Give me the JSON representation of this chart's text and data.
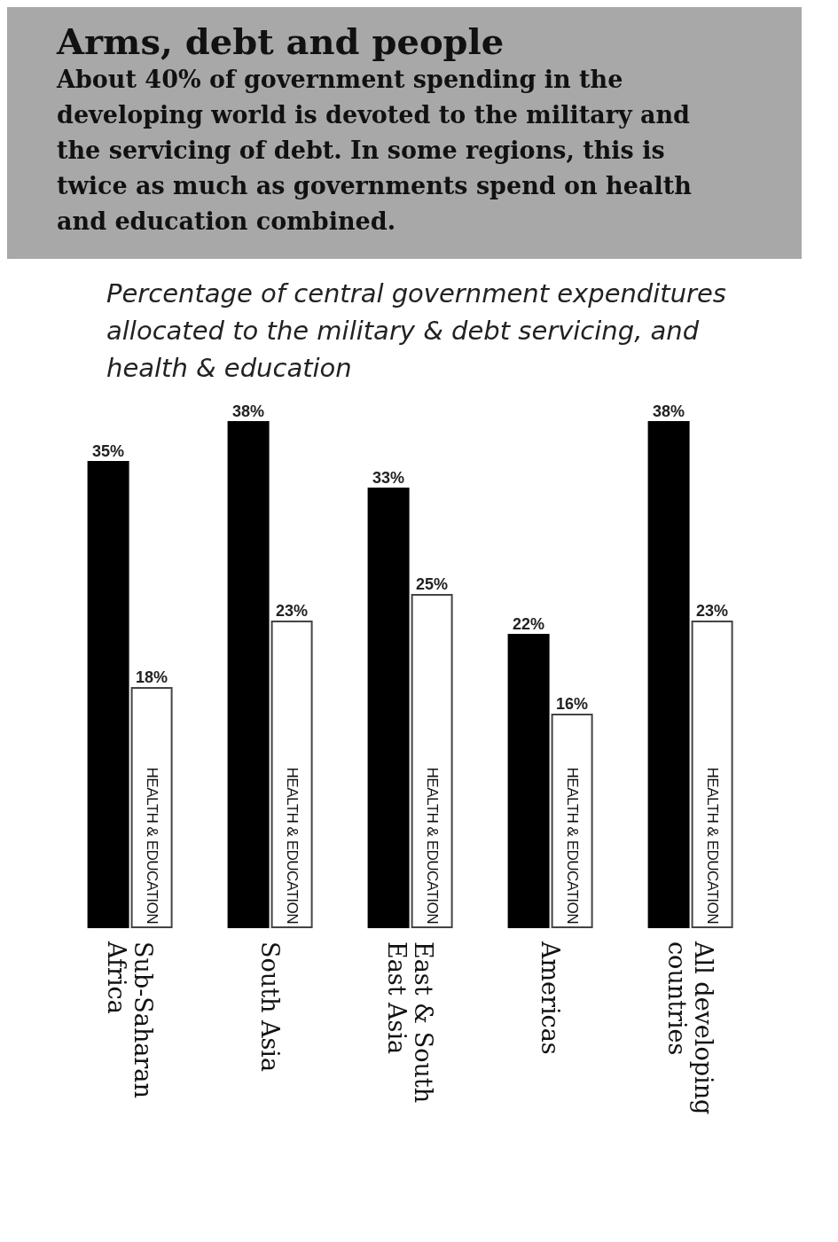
{
  "chart_data": {
    "type": "bar",
    "title": "Arms, debt and people",
    "subtitle": "About 40% of government spending in the developing world is devoted to the military and the servicing of debt. In some regions, this is twice as much as governments spend on health and education combined.",
    "annotations": [
      "Percentage of central government expenditures allocated to the military & debt servicing, and health & education"
    ],
    "categories": [
      "Sub-Saharan Africa",
      "South Asia",
      "East & South East Asia",
      "Americas",
      "All developing countries"
    ],
    "series": [
      {
        "color": "#000000",
        "values": [
          35,
          38,
          33,
          22,
          38
        ],
        "value_labels": [
          "35%",
          "38%",
          "33%",
          "22%",
          "38%"
        ]
      },
      {
        "name": "HEALTH & EDUCATION",
        "color": "#ffffff",
        "values": [
          18,
          23,
          25,
          16,
          23
        ],
        "value_labels": [
          "18%",
          "23%",
          "25%",
          "16%",
          "23%"
        ]
      }
    ]
  }
}
